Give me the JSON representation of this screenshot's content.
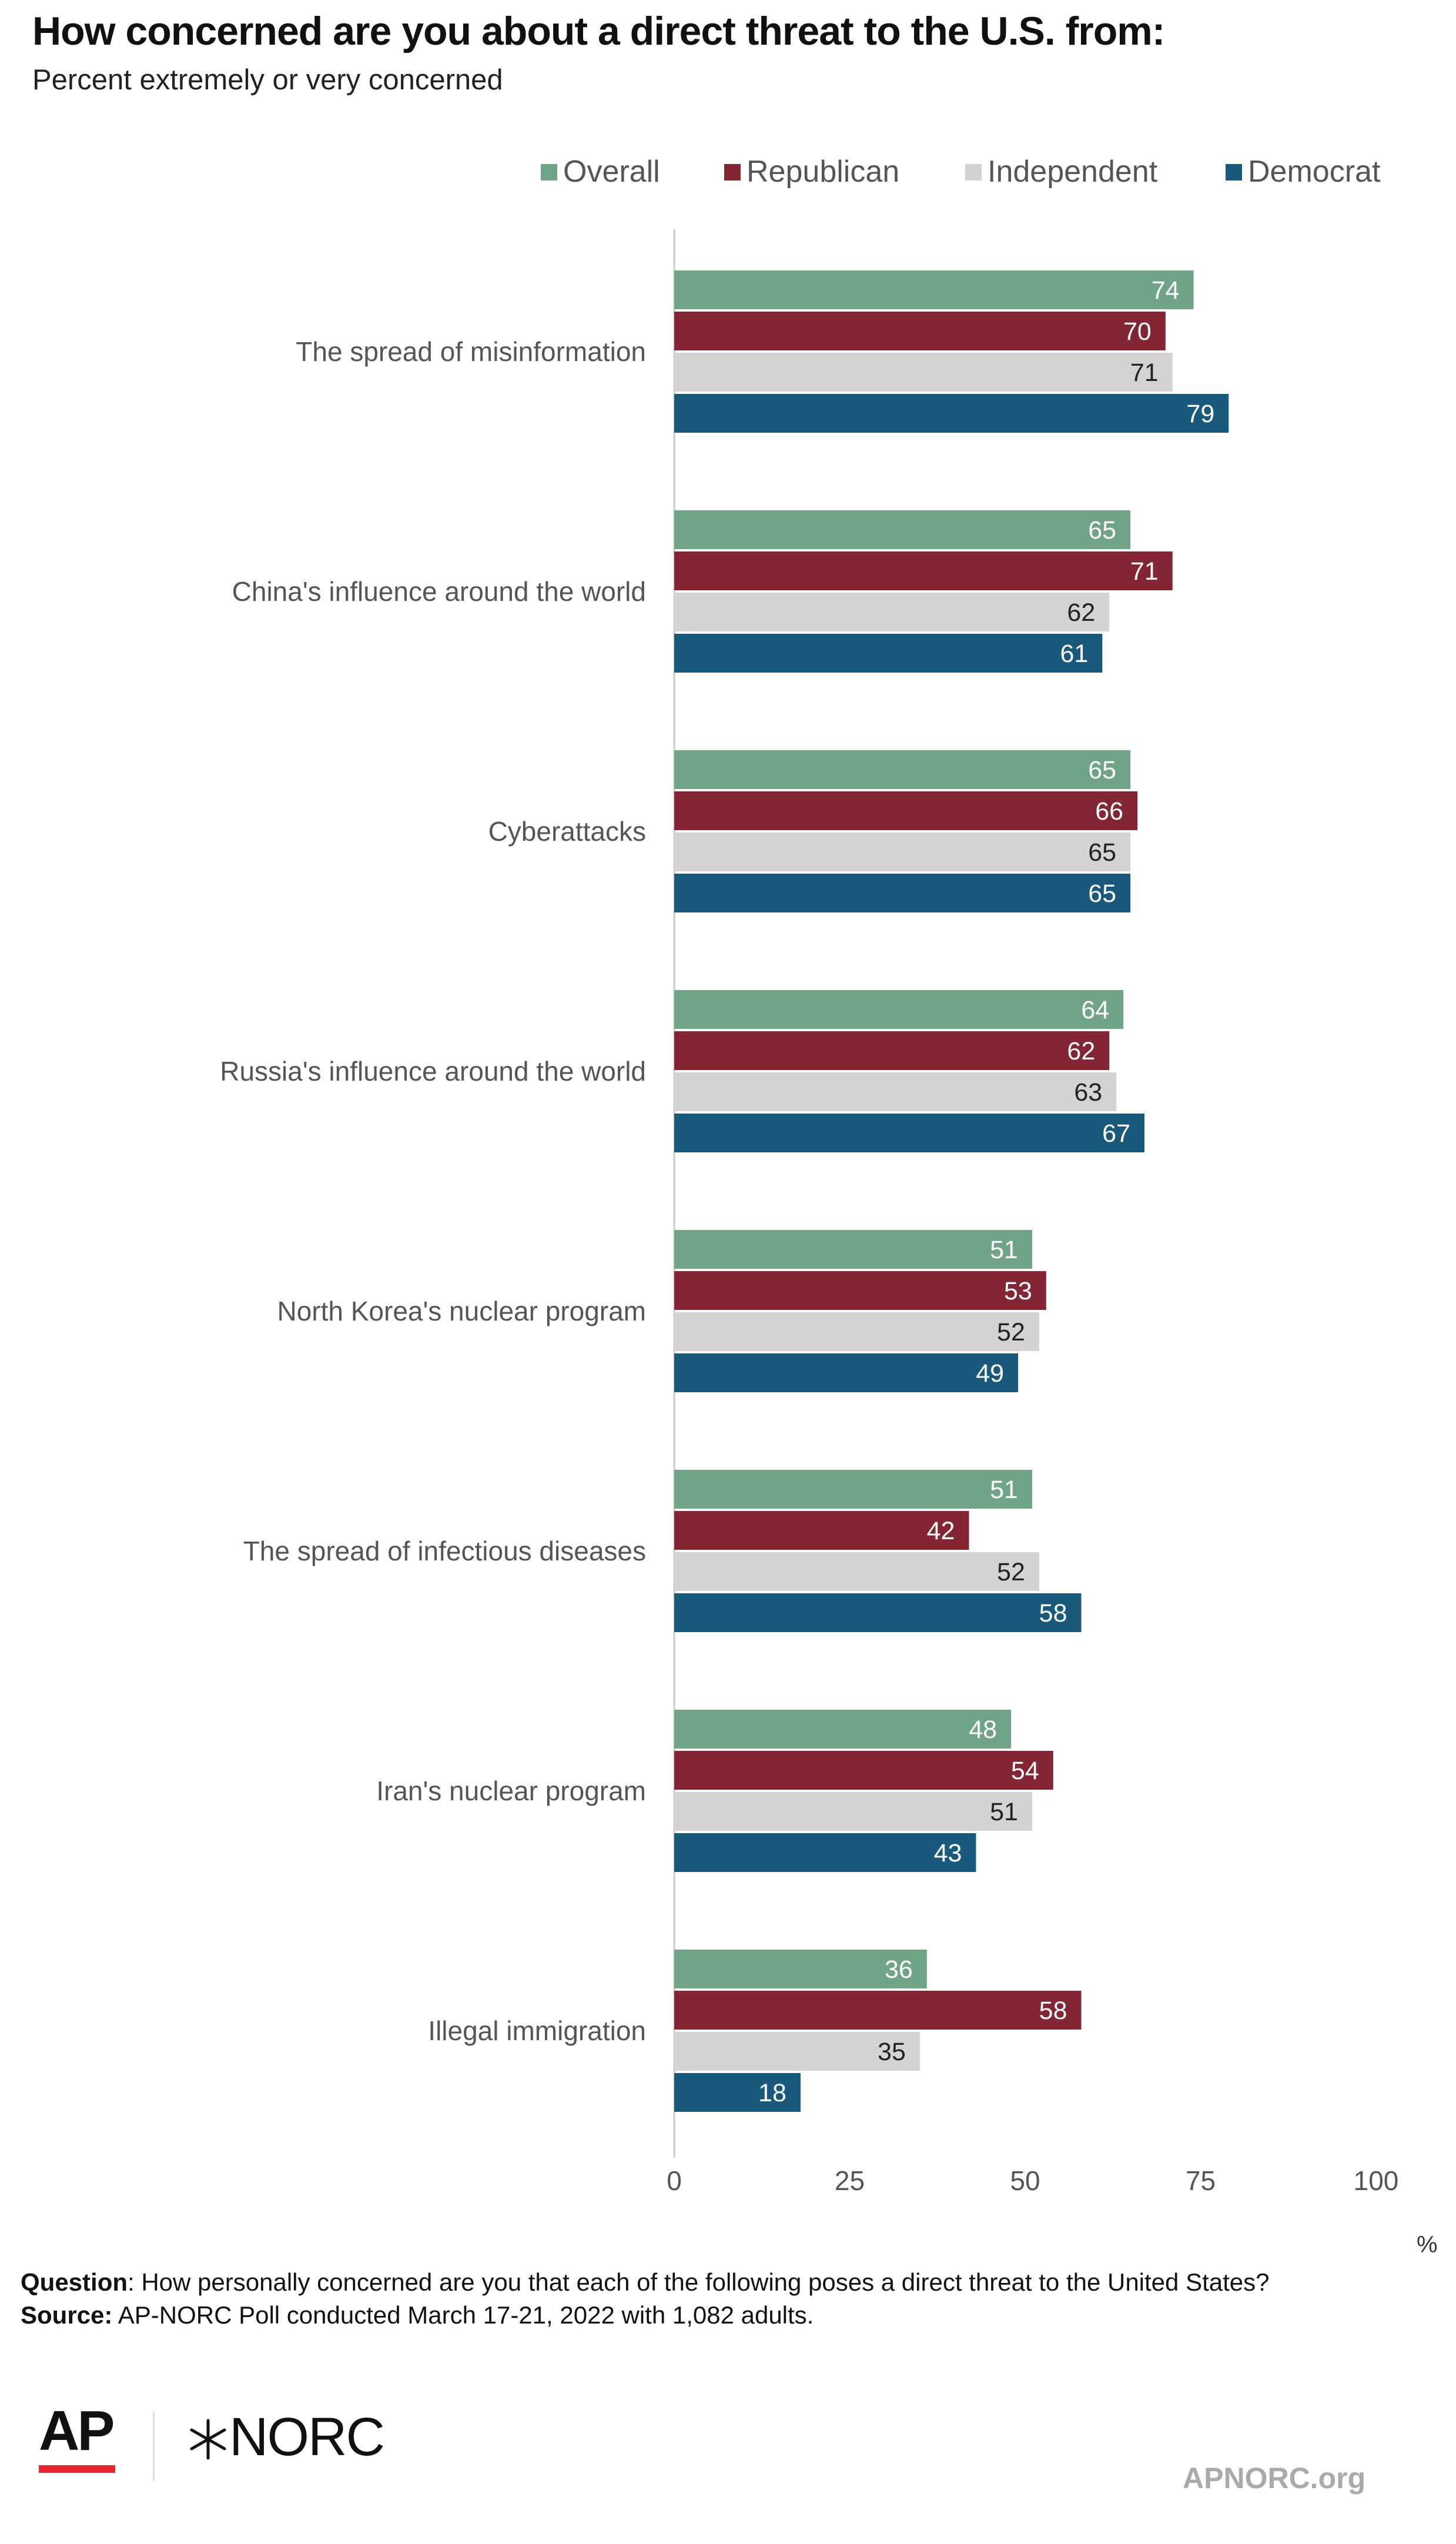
{
  "title": "How concerned are you about a direct threat to the U.S. from:",
  "subtitle": "Percent extremely or very concerned",
  "colors": {
    "Overall": "#6fa586",
    "Republican": "#842533",
    "Independent": "#d3d3d3",
    "Democrat": "#19597b"
  },
  "legend": [
    "Overall",
    "Republican",
    "Independent",
    "Democrat"
  ],
  "axis_unit": "%",
  "chart_data": {
    "type": "bar",
    "orientation": "horizontal",
    "categories": [
      "The spread of misinformation",
      "China's influence around the world",
      "Cyberattacks",
      "Russia's influence around the world",
      "North Korea's nuclear program",
      "The spread of infectious diseases",
      "Iran's nuclear program",
      "Illegal immigration"
    ],
    "series": [
      {
        "name": "Overall",
        "values": [
          74,
          65,
          65,
          64,
          51,
          51,
          48,
          36
        ]
      },
      {
        "name": "Republican",
        "values": [
          70,
          71,
          66,
          62,
          53,
          42,
          54,
          58
        ]
      },
      {
        "name": "Independent",
        "values": [
          71,
          62,
          65,
          63,
          52,
          52,
          51,
          35
        ]
      },
      {
        "name": "Democrat",
        "values": [
          79,
          61,
          65,
          67,
          49,
          58,
          43,
          18
        ]
      }
    ],
    "xlim": [
      0,
      100
    ],
    "xticks": [
      0,
      25,
      50,
      75,
      100
    ],
    "xlabel": "%",
    "legend_position": "top-right",
    "grid": false
  },
  "footnote": {
    "question_label": "Question",
    "question_text": ": How personally concerned are you that each of the following poses a direct threat to the United States?",
    "source_label": "Source:",
    "source_text": " AP-NORC Poll conducted March 17-21, 2022 with 1,082 adults."
  },
  "logos": {
    "ap": "AP",
    "norc": "NORC",
    "norc_mark": "star-mark-icon"
  },
  "site_url": "APNORC.org"
}
